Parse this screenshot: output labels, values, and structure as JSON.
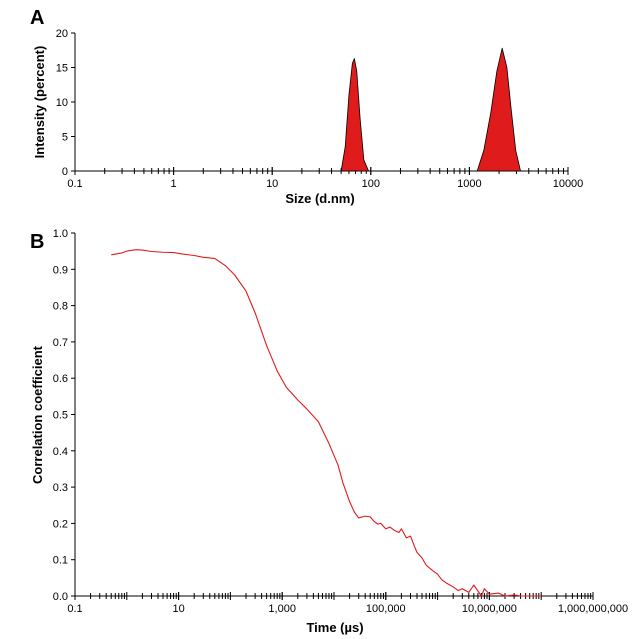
{
  "panels": {
    "a_label": "A",
    "b_label": "B"
  },
  "chart_data": [
    {
      "panel": "A",
      "type": "area",
      "xlabel": "Size (d.nm)",
      "ylabel": "Intensity (percent)",
      "x_scale": "log",
      "xlim": [
        0.1,
        10000
      ],
      "ylim": [
        0,
        20
      ],
      "x_ticks": [
        0.1,
        1,
        10,
        100,
        1000,
        10000
      ],
      "x_tick_labels": [
        "0.1",
        "1",
        "10",
        "100",
        "1000",
        "10000"
      ],
      "y_ticks": [
        0,
        5,
        10,
        15,
        20
      ],
      "y_tick_labels": [
        "0",
        "5",
        "10",
        "15",
        "20"
      ],
      "fill_color": "#e01b1b",
      "series": [
        {
          "x": [
            50,
            55,
            60,
            65,
            68.1,
            72,
            78,
            85,
            95
          ],
          "y": [
            0,
            3.5,
            11,
            15.6,
            16.3,
            14.5,
            7.5,
            1.6,
            0
          ]
        },
        {
          "x": [
            1200,
            1400,
            1650,
            1900,
            2150,
            2400,
            2650,
            2950,
            3300
          ],
          "y": [
            0,
            3.0,
            8.5,
            14.5,
            17.8,
            15.0,
            9.0,
            3.0,
            0
          ]
        }
      ]
    },
    {
      "panel": "B",
      "type": "line",
      "xlabel": "Time (µs)",
      "ylabel": "Correlation coefficient",
      "x_scale": "log",
      "xlim": [
        0.1,
        1000000000
      ],
      "ylim": [
        0,
        1.0
      ],
      "x_ticks": [
        0.1,
        10,
        1000,
        100000,
        10000000,
        1000000000
      ],
      "x_tick_labels": [
        "0.1",
        "10",
        "1,000",
        "100,000",
        "10,000,000",
        "1,000,000,000"
      ],
      "y_ticks": [
        0,
        0.1,
        0.2,
        0.3,
        0.4,
        0.5,
        0.6,
        0.7,
        0.8,
        0.9,
        1.0
      ],
      "y_tick_labels": [
        "0.0",
        "0.1",
        "0.2",
        "0.3",
        "0.4",
        "0.5",
        "0.6",
        "0.7",
        "0.8",
        "0.9",
        "1.0"
      ],
      "line_color": "#e01b1b",
      "series": [
        {
          "x": [
            0.5,
            0.8,
            1,
            1.5,
            2,
            3,
            5,
            8,
            12,
            20,
            30,
            50,
            80,
            120,
            200,
            300,
            500,
            800,
            1200,
            2000,
            3000,
            5000,
            8000,
            12000,
            15000,
            20000,
            25000,
            30000,
            40000,
            50000,
            60000,
            70000,
            80000,
            100000,
            120000,
            150000,
            180000,
            200000,
            250000,
            300000,
            350000,
            400000,
            500000,
            600000,
            800000,
            1000000,
            1200000,
            1500000,
            2000000,
            2500000,
            3000000,
            4000000,
            5000000,
            7000000,
            8000000,
            10000000,
            15000000,
            20000000,
            30000000,
            40000000,
            100000000
          ],
          "y": [
            0.94,
            0.945,
            0.95,
            0.954,
            0.953,
            0.949,
            0.947,
            0.946,
            0.942,
            0.938,
            0.933,
            0.93,
            0.91,
            0.885,
            0.84,
            0.78,
            0.69,
            0.62,
            0.575,
            0.54,
            0.515,
            0.48,
            0.42,
            0.36,
            0.31,
            0.26,
            0.23,
            0.215,
            0.22,
            0.218,
            0.205,
            0.198,
            0.2,
            0.185,
            0.19,
            0.18,
            0.175,
            0.185,
            0.16,
            0.165,
            0.14,
            0.12,
            0.105,
            0.085,
            0.07,
            0.06,
            0.045,
            0.035,
            0.025,
            0.015,
            0.02,
            0.01,
            0.03,
            0.0,
            0.02,
            0.005,
            0.008,
            0.0,
            0.003,
            0.0,
            0.0
          ]
        }
      ]
    }
  ]
}
